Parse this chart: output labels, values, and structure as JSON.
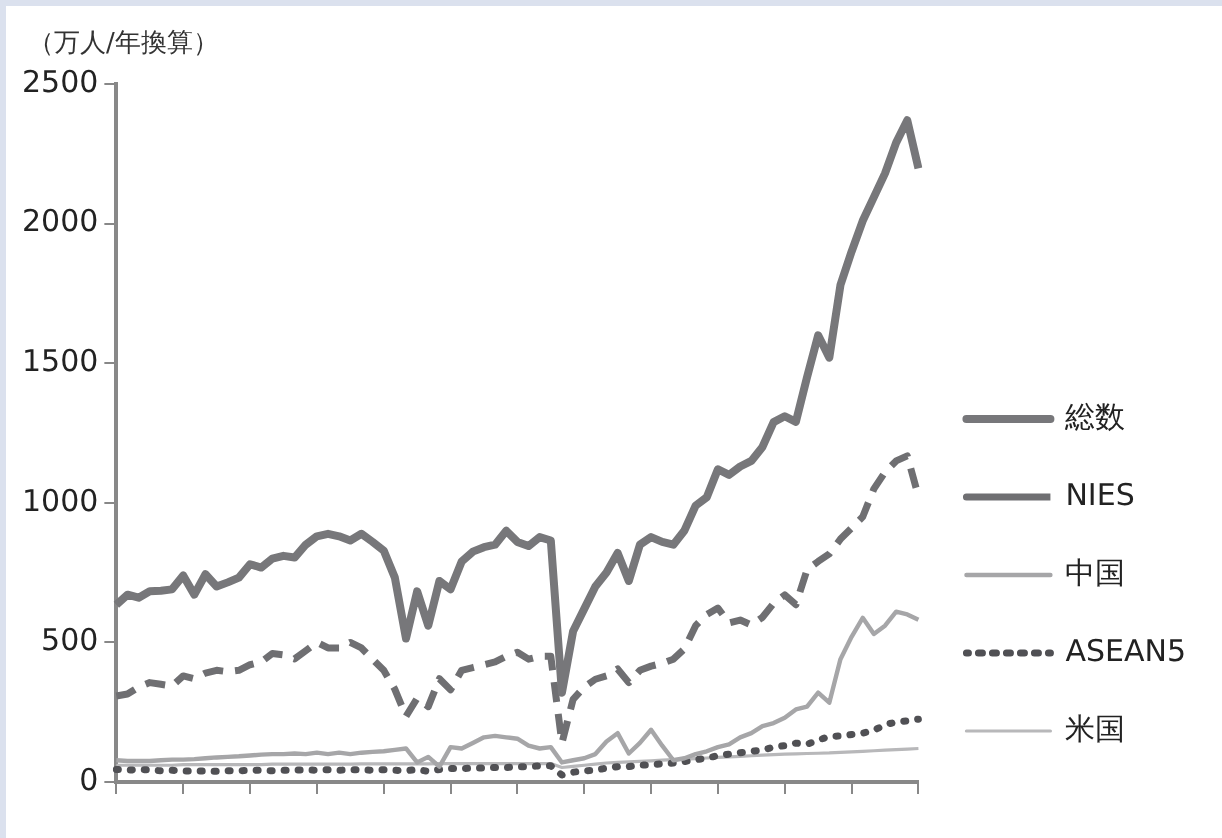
{
  "chart_data": {
    "type": "line",
    "ylabel": "（万人/年換算）",
    "categories": [
      null,
      null,
      null,
      null,
      null,
      null,
      null,
      null,
      null,
      null,
      null,
      null,
      null,
      null,
      null,
      null,
      null,
      null,
      null,
      null,
      null,
      null,
      null,
      null,
      null,
      null,
      null,
      null,
      null,
      null,
      null,
      null,
      null,
      null,
      null,
      null,
      null,
      null,
      null,
      null,
      null,
      null,
      null,
      null,
      null,
      null,
      null,
      null,
      null,
      null,
      null,
      null,
      null,
      null,
      null,
      null,
      null,
      null,
      null,
      null,
      null,
      null,
      null,
      null,
      null,
      null,
      null,
      null,
      null,
      null,
      null,
      null,
      null
    ],
    "series": [
      {
        "name": "総数",
        "color": "#77777a",
        "line_style": "solid",
        "values": [
          635,
          671,
          660,
          683,
          685,
          690,
          740,
          671,
          744,
          700,
          715,
          732,
          780,
          768,
          800,
          810,
          804,
          850,
          880,
          889,
          880,
          865,
          889,
          860,
          829,
          732,
          514,
          683,
          560,
          720,
          690,
          790,
          825,
          841,
          850,
          900,
          860,
          845,
          877,
          865,
          320,
          540,
          620,
          700,
          750,
          820,
          720,
          850,
          877,
          860,
          850,
          901,
          990,
          1020,
          1120,
          1100,
          1130,
          1150,
          1200,
          1289,
          1310,
          1290,
          1450,
          1600,
          1520,
          1780,
          1900,
          2010,
          2095,
          2180,
          2290,
          2370,
          2198
        ]
      },
      {
        "name": "NIES",
        "color": "#6f6f72",
        "line_style": "dashed",
        "values": [
          308,
          315,
          340,
          356,
          350,
          344,
          380,
          370,
          390,
          400,
          395,
          400,
          420,
          430,
          460,
          455,
          441,
          470,
          500,
          480,
          480,
          500,
          480,
          440,
          400,
          332,
          235,
          300,
          270,
          370,
          330,
          400,
          410,
          420,
          430,
          450,
          465,
          440,
          450,
          450,
          140,
          296,
          340,
          368,
          380,
          405,
          356,
          400,
          415,
          425,
          440,
          477,
          560,
          600,
          623,
          570,
          580,
          562,
          590,
          640,
          670,
          635,
          760,
          790,
          817,
          870,
          910,
          950,
          1050,
          1110,
          1150,
          1168,
          1023
        ]
      },
      {
        "name": "中国",
        "color": "#a6a6a8",
        "line_style": "solid",
        "values": [
          78,
          75,
          75,
          75,
          78,
          80,
          80,
          82,
          85,
          88,
          90,
          92,
          95,
          98,
          100,
          100,
          102,
          100,
          105,
          100,
          105,
          100,
          105,
          108,
          110,
          115,
          120,
          70,
          90,
          55,
          125,
          120,
          140,
          160,
          165,
          160,
          155,
          130,
          120,
          125,
          70,
          78,
          85,
          100,
          145,
          175,
          102,
          140,
          187,
          130,
          78,
          85,
          100,
          110,
          125,
          135,
          160,
          175,
          200,
          211,
          230,
          260,
          270,
          320,
          284,
          440,
          520,
          588,
          530,
          560,
          610,
          600,
          581
        ]
      },
      {
        "name": "ASEAN5",
        "color": "#505054",
        "line_style": "dotted",
        "values": [
          45,
          42,
          45,
          43,
          40,
          42,
          40,
          38,
          40,
          38,
          40,
          40,
          42,
          42,
          40,
          42,
          42,
          44,
          42,
          44,
          42,
          44,
          44,
          42,
          44,
          42,
          40,
          45,
          38,
          45,
          48,
          48,
          50,
          50,
          52,
          52,
          55,
          55,
          58,
          58,
          25,
          35,
          40,
          42,
          50,
          55,
          55,
          60,
          62,
          65,
          68,
          73,
          80,
          85,
          95,
          100,
          105,
          110,
          114,
          125,
          130,
          139,
          135,
          150,
          163,
          165,
          170,
          175,
          185,
          205,
          215,
          219,
          225
        ]
      },
      {
        "name": "米国",
        "color": "#b8b8ba",
        "line_style": "solid",
        "values": [
          60,
          60,
          60,
          60,
          60,
          60,
          62,
          62,
          62,
          62,
          62,
          62,
          62,
          62,
          64,
          64,
          64,
          64,
          64,
          64,
          64,
          64,
          65,
          65,
          65,
          65,
          65,
          65,
          65,
          66,
          66,
          66,
          66,
          66,
          66,
          66,
          66,
          66,
          66,
          66,
          52,
          56,
          60,
          64,
          68,
          70,
          72,
          74,
          76,
          78,
          80,
          82,
          84,
          86,
          88,
          90,
          92,
          94,
          96,
          98,
          100,
          101,
          102,
          103,
          104,
          106,
          108,
          110,
          112,
          114,
          116,
          118,
          120
        ]
      }
    ],
    "ylim": [
      0,
      2500
    ],
    "yticks": [
      0,
      500,
      1000,
      1500,
      2000,
      2500
    ],
    "grid": false,
    "legend": "right",
    "marker": "none",
    "tick_labels": "y"
  }
}
